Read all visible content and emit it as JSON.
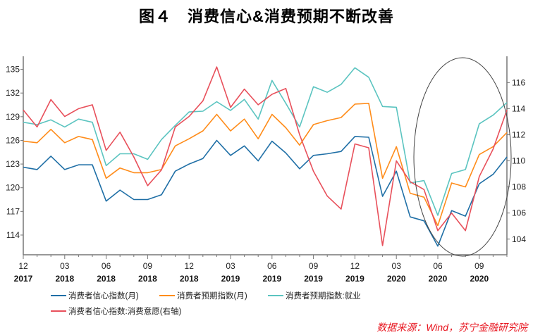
{
  "title": "图４　消费信心&消费预期不断改善",
  "source": "数据来源：Wind，苏宁金融研究院",
  "chart_data": {
    "type": "line",
    "x": [
      "2017-12",
      "2018-01",
      "2018-02",
      "2018-03",
      "2018-04",
      "2018-05",
      "2018-06",
      "2018-07",
      "2018-08",
      "2018-09",
      "2018-10",
      "2018-11",
      "2018-12",
      "2019-01",
      "2019-02",
      "2019-03",
      "2019-04",
      "2019-05",
      "2019-06",
      "2019-07",
      "2019-08",
      "2019-09",
      "2019-10",
      "2019-11",
      "2019-12",
      "2020-01",
      "2020-02",
      "2020-03",
      "2020-04",
      "2020-05",
      "2020-06",
      "2020-07",
      "2020-08",
      "2020-09",
      "2020-10",
      "2020-11"
    ],
    "xticks": [
      {
        "i": 0,
        "m": "12",
        "y": "2017"
      },
      {
        "i": 3,
        "m": "03",
        "y": "2018"
      },
      {
        "i": 6,
        "m": "06",
        "y": "2018"
      },
      {
        "i": 9,
        "m": "09",
        "y": "2018"
      },
      {
        "i": 12,
        "m": "12",
        "y": "2018"
      },
      {
        "i": 15,
        "m": "03",
        "y": "2019"
      },
      {
        "i": 18,
        "m": "06",
        "y": "2019"
      },
      {
        "i": 21,
        "m": "09",
        "y": "2019"
      },
      {
        "i": 24,
        "m": "12",
        "y": "2019"
      },
      {
        "i": 27,
        "m": "03",
        "y": "2020"
      },
      {
        "i": 30,
        "m": "06",
        "y": "2020"
      },
      {
        "i": 33,
        "m": "09",
        "y": "2020"
      }
    ],
    "ylim_left": [
      111.5,
      136.3
    ],
    "yticks_left": [
      114,
      117,
      120,
      123,
      126,
      129,
      132,
      135
    ],
    "ylim_right": [
      102.8,
      117.8
    ],
    "yticks_right": [
      104,
      106,
      108,
      110,
      112,
      114,
      116
    ],
    "series": [
      {
        "name": "消费者信心指数(月)",
        "axis": "left",
        "color": "#1f6fa6",
        "values": [
          122.6,
          122.3,
          124.0,
          122.3,
          122.9,
          122.9,
          118.3,
          119.7,
          118.5,
          118.5,
          119.1,
          122.1,
          123.0,
          123.7,
          126.0,
          124.1,
          125.3,
          123.4,
          125.9,
          124.4,
          122.4,
          124.1,
          124.3,
          124.6,
          126.5,
          126.4,
          118.9,
          122.1,
          116.3,
          115.8,
          112.6,
          117.1,
          116.4,
          120.5,
          121.7,
          123.9
        ]
      },
      {
        "name": "消费者预期指数(月)",
        "axis": "left",
        "color": "#ff8c1a",
        "values": [
          125.9,
          125.7,
          127.4,
          125.7,
          126.5,
          126.1,
          121.2,
          122.5,
          121.9,
          121.9,
          122.3,
          125.3,
          126.2,
          127.2,
          129.3,
          127.2,
          128.7,
          126.2,
          129.3,
          127.6,
          125.4,
          128.0,
          128.5,
          128.9,
          130.6,
          130.7,
          121.2,
          125.2,
          119.3,
          118.8,
          115.2,
          120.6,
          120.1,
          124.2,
          125.2,
          127.0
        ]
      },
      {
        "name": "消费者预期指数:就业",
        "axis": "left",
        "color": "#5bc4c0",
        "values": [
          128.3,
          128.0,
          128.6,
          127.7,
          128.7,
          128.3,
          122.8,
          124.3,
          124.3,
          123.6,
          126.1,
          127.9,
          129.6,
          129.7,
          130.9,
          129.8,
          131.2,
          128.7,
          133.6,
          130.7,
          127.7,
          132.8,
          132.1,
          133.1,
          135.2,
          134.0,
          130.3,
          130.2,
          120.6,
          120.9,
          116.5,
          121.8,
          122.3,
          128.1,
          129.2,
          130.8
        ]
      },
      {
        "name": "消费者信心指数:消费意愿(右轴)",
        "axis": "right",
        "color": "#e8505b",
        "values": [
          113.9,
          112.6,
          114.7,
          113.4,
          114.0,
          114.3,
          110.8,
          112.2,
          110.3,
          108.1,
          109.3,
          112.6,
          113.4,
          114.6,
          117.2,
          114.1,
          115.5,
          114.3,
          115.1,
          115.55,
          112.0,
          109.2,
          107.3,
          106.3,
          111.3,
          111.0,
          103.5,
          110.0,
          108.4,
          107.8,
          104.65,
          106.0,
          104.65,
          108.8,
          110.9,
          113.9
        ]
      }
    ]
  }
}
